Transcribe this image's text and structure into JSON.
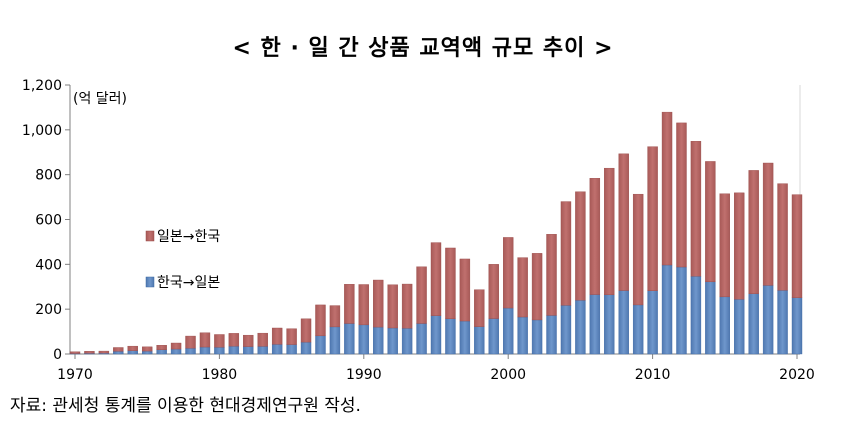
{
  "title": "< 한 · 일 간 상품 교역액 규모 추이 >",
  "source": "자료: 관세청 통계를 이용한 현대경제연구원 작성.",
  "unit": "(억 달러)",
  "colors": {
    "japan_to_korea": "#c0706e",
    "korea_to_japan": "#6f97cc",
    "axis": "#808080",
    "grid": "#d9d9d9"
  },
  "chart_data": {
    "type": "bar",
    "stacked": true,
    "title": "< 한 · 일 간 상품 교역액 규모 추이 >",
    "unit_label": "(억 달러)",
    "x": [
      1970,
      1971,
      1972,
      1973,
      1974,
      1975,
      1976,
      1977,
      1978,
      1979,
      1980,
      1981,
      1982,
      1983,
      1984,
      1985,
      1986,
      1987,
      1988,
      1989,
      1990,
      1991,
      1992,
      1993,
      1994,
      1995,
      1996,
      1997,
      1998,
      1999,
      2000,
      2001,
      2002,
      2003,
      2004,
      2005,
      2006,
      2007,
      2008,
      2009,
      2010,
      2011,
      2012,
      2013,
      2014,
      2015,
      2016,
      2017,
      2018,
      2019,
      2020
    ],
    "x_tick_labels": [
      "1970",
      "1980",
      "1990",
      "2000",
      "2010",
      "2020"
    ],
    "x_tick_values": [
      1970,
      1980,
      1990,
      2000,
      2010,
      2020
    ],
    "y_tick_labels": [
      "0",
      "200",
      "400",
      "600",
      "800",
      "1,000",
      "1,200"
    ],
    "y_tick_values": [
      0,
      200,
      400,
      600,
      800,
      1000,
      1200
    ],
    "ylim": [
      0,
      1200
    ],
    "grid": false,
    "legend_position": "center-left",
    "series": [
      {
        "name": "한국→일본",
        "values": [
          2,
          3,
          4,
          12,
          15,
          13,
          19,
          22,
          26,
          31,
          30,
          35,
          33,
          34,
          43,
          42,
          53,
          81,
          121,
          136,
          130,
          120,
          116,
          115,
          136,
          171,
          157,
          147,
          122,
          158,
          205,
          165,
          152,
          172,
          217,
          240,
          265,
          264,
          283,
          219,
          282,
          397,
          388,
          347,
          322,
          255,
          244,
          269,
          306,
          284,
          251
        ]
      },
      {
        "name": "일본→한국",
        "values": [
          8,
          9,
          9,
          17,
          20,
          19,
          20,
          27,
          54,
          64,
          57,
          57,
          51,
          59,
          73,
          71,
          104,
          138,
          95,
          175,
          180,
          210,
          193,
          197,
          253,
          326,
          316,
          277,
          165,
          242,
          315,
          265,
          297,
          362,
          463,
          484,
          519,
          565,
          610,
          494,
          643,
          682,
          643,
          602,
          537,
          460,
          475,
          550,
          546,
          476,
          460
        ]
      }
    ]
  }
}
